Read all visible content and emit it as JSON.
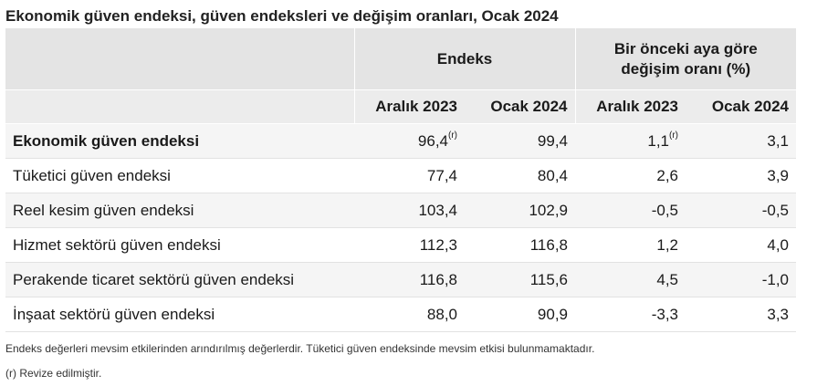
{
  "title": "Ekonomik güven endeksi, güven endeksleri ve değişim oranları, Ocak 2024",
  "header": {
    "group_index": "Endeks",
    "group_change_line1": "Bir önceki aya göre",
    "group_change_line2": "değişim oranı (%)",
    "cols": [
      "Aralık 2023",
      "Ocak 2024",
      "Aralık 2023",
      "Ocak 2024"
    ]
  },
  "rows": [
    {
      "label": "Ekonomik güven endeksi",
      "v": [
        "96,4",
        "99,4",
        "1,1",
        "3,1"
      ],
      "marks": [
        "(r)",
        "",
        "(r)",
        ""
      ]
    },
    {
      "label": "Tüketici güven endeksi",
      "v": [
        "77,4",
        "80,4",
        "2,6",
        "3,9"
      ],
      "marks": [
        "",
        "",
        "",
        ""
      ]
    },
    {
      "label": "Reel kesim güven endeksi",
      "v": [
        "103,4",
        "102,9",
        "-0,5",
        "-0,5"
      ],
      "marks": [
        "",
        "",
        "",
        ""
      ]
    },
    {
      "label": "Hizmet sektörü güven endeksi",
      "v": [
        "112,3",
        "116,8",
        "1,2",
        "4,0"
      ],
      "marks": [
        "",
        "",
        "",
        ""
      ]
    },
    {
      "label": "Perakende ticaret sektörü güven endeksi",
      "v": [
        "116,8",
        "115,6",
        "4,5",
        "-1,0"
      ],
      "marks": [
        "",
        "",
        "",
        ""
      ]
    },
    {
      "label": "İnşaat sektörü güven endeksi",
      "v": [
        "88,0",
        "90,9",
        "-3,3",
        "3,3"
      ],
      "marks": [
        "",
        "",
        "",
        ""
      ]
    }
  ],
  "notes": {
    "n1": "Endeks değerleri mevsim etkilerinden arındırılmış değerlerdir. Tüketici güven endeksinde mevsim etkisi bulunmamaktadır.",
    "n2": "(r) Revize edilmiştir."
  }
}
